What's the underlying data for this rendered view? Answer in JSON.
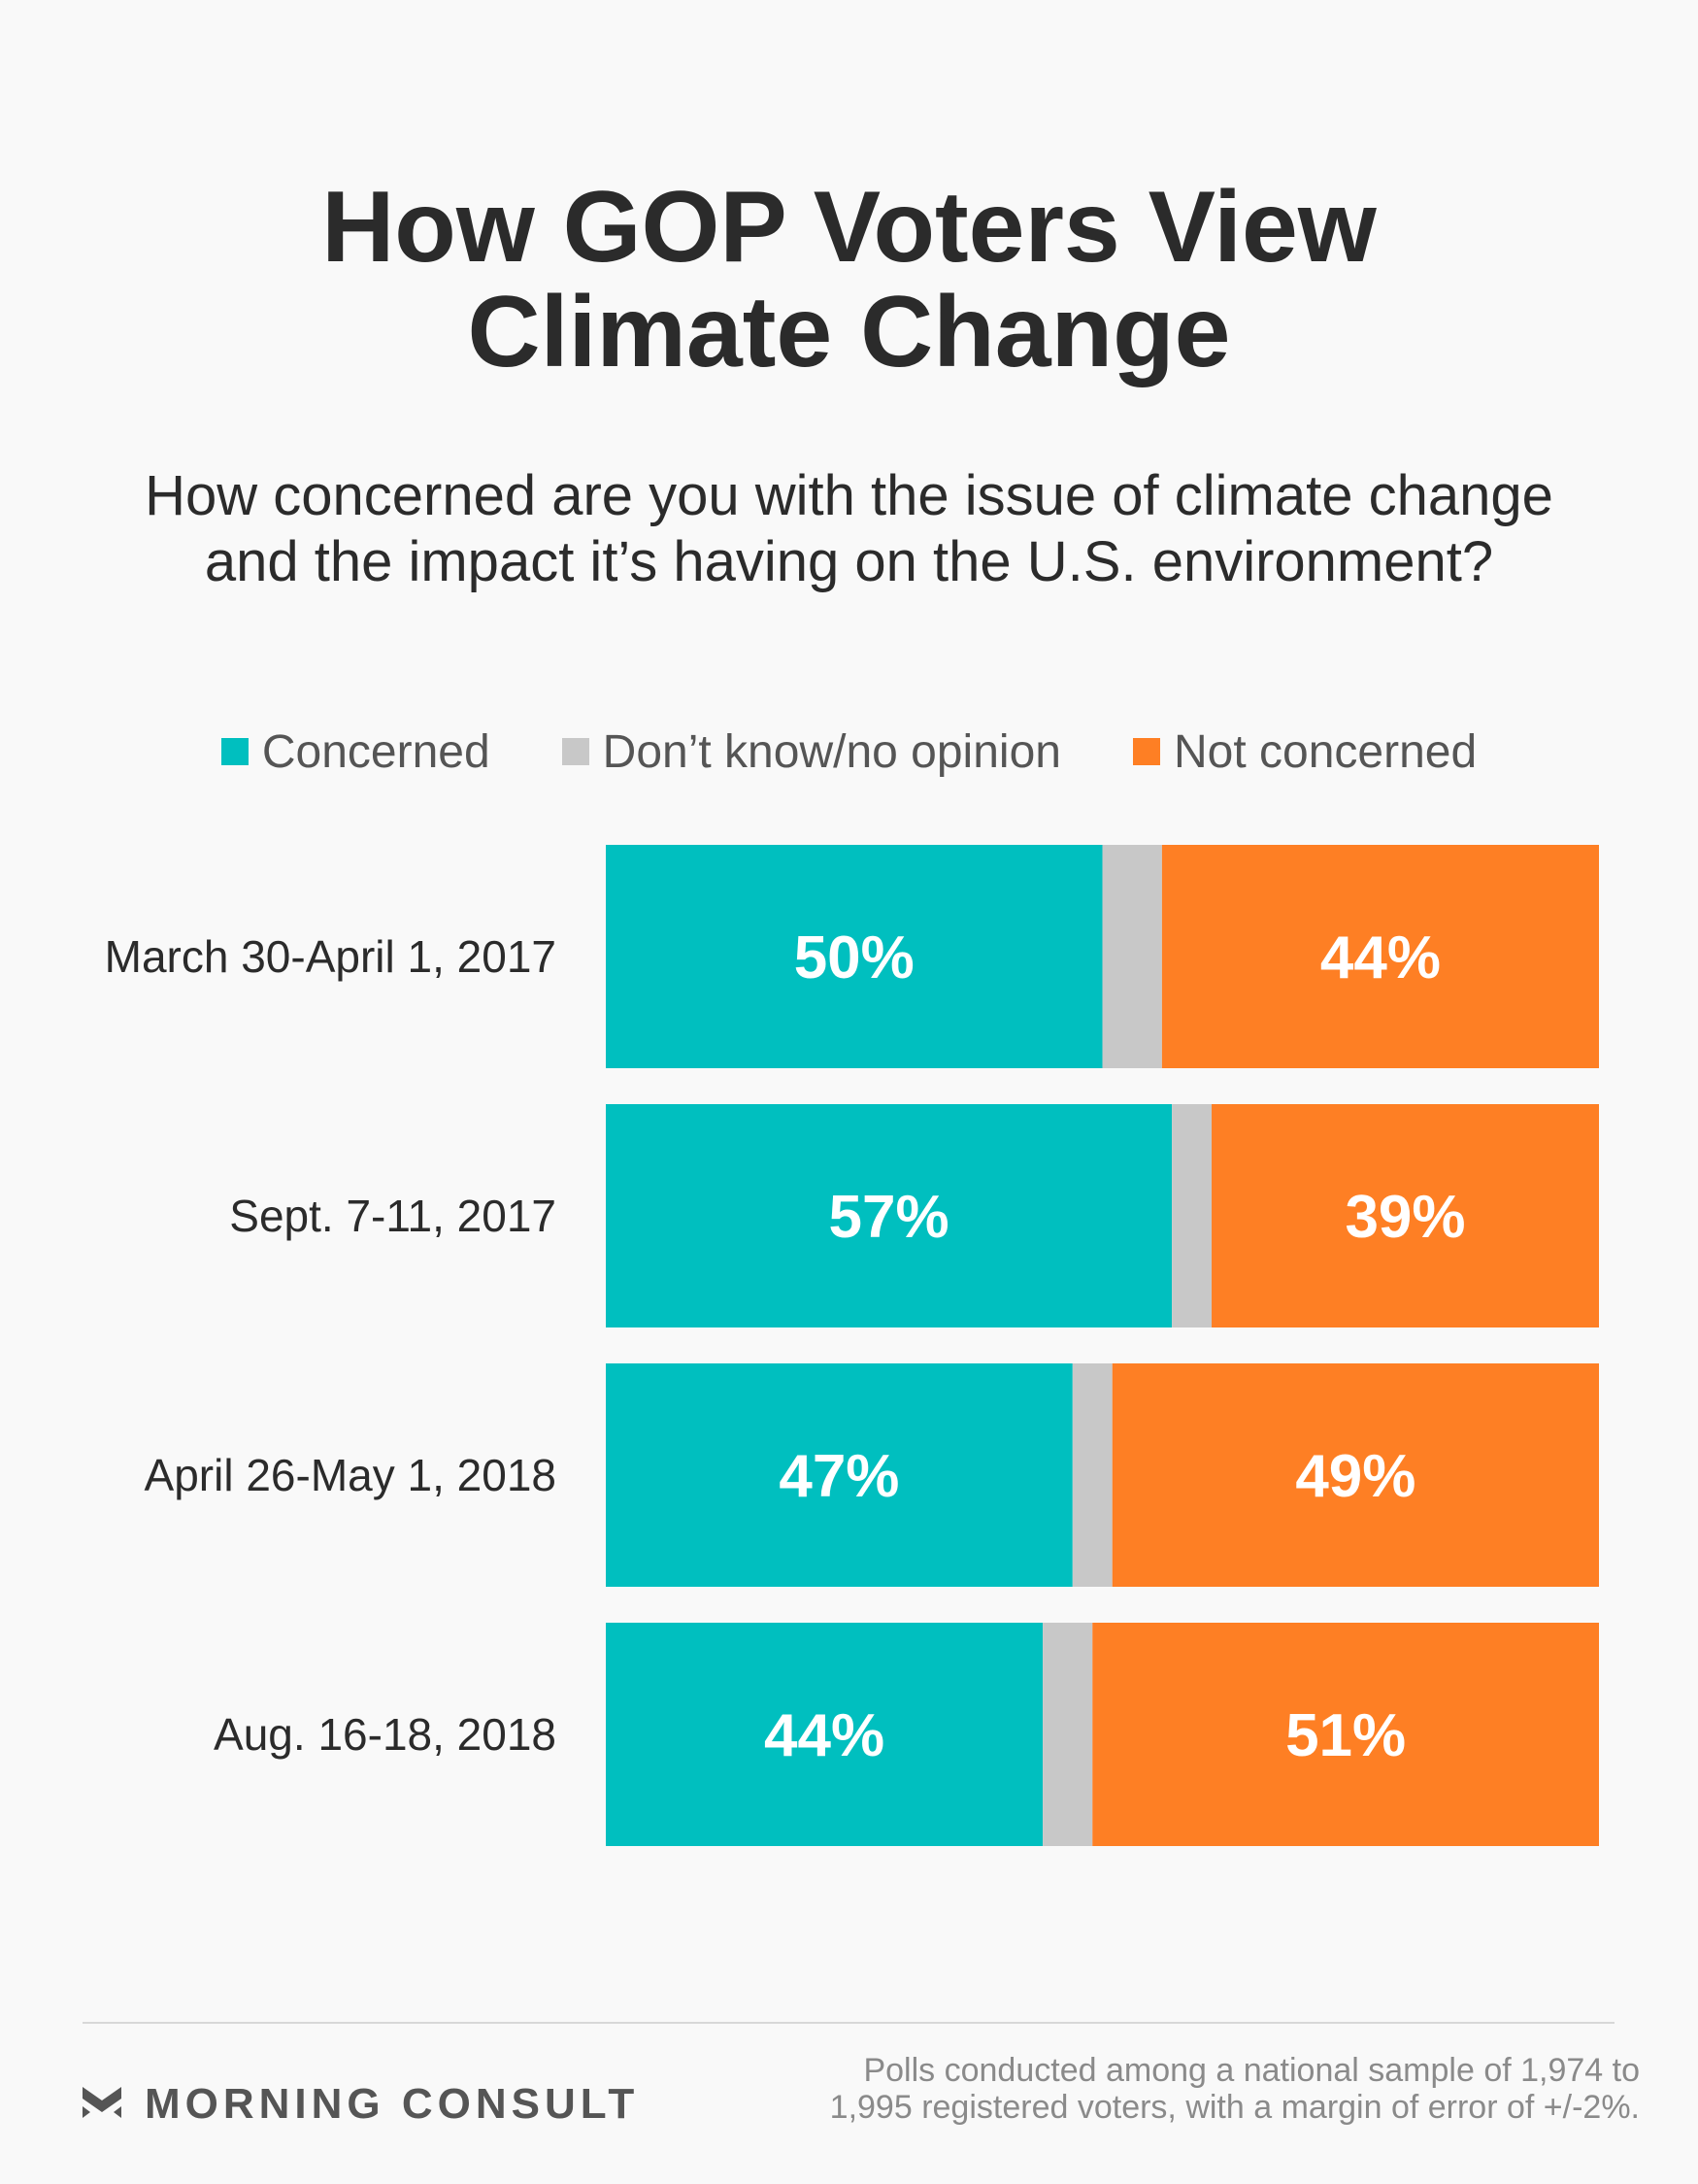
{
  "title_line1": "How GOP Voters View",
  "title_line2": "Climate Change",
  "subtitle_line1": "How concerned are you with the issue of climate change",
  "subtitle_line2": "and the impact it’s having on the U.S. environment?",
  "colors": {
    "concerned": "#00bfbf",
    "dont_know": "#c8c8c8",
    "not_concerned": "#fe7f24"
  },
  "chart_data": {
    "type": "bar",
    "orientation": "horizontal",
    "stacked": true,
    "categories": [
      "March 30-April 1, 2017",
      "Sept. 7-11, 2017",
      "April 26-May 1, 2018",
      "Aug. 16-18, 2018"
    ],
    "series": [
      {
        "name": "Concerned",
        "values": [
          50,
          57,
          47,
          44
        ],
        "labels": [
          "50%",
          "57%",
          "47%",
          "44%"
        ]
      },
      {
        "name": "Don’t know/no opinion",
        "values": [
          6,
          4,
          4,
          5
        ],
        "labels": [
          "",
          "",
          "",
          ""
        ]
      },
      {
        "name": "Not concerned",
        "values": [
          44,
          39,
          49,
          51
        ],
        "labels": [
          "44%",
          "39%",
          "49%",
          "51%"
        ]
      }
    ],
    "xlim": [
      0,
      100
    ],
    "grid": false,
    "legend": "top"
  },
  "footer": {
    "brand": "MORNING CONSULT",
    "note_line1": "Polls conducted among a national sample of 1,974 to",
    "note_line2": "1,995 registered voters, with a margin of error of +/-2%."
  }
}
